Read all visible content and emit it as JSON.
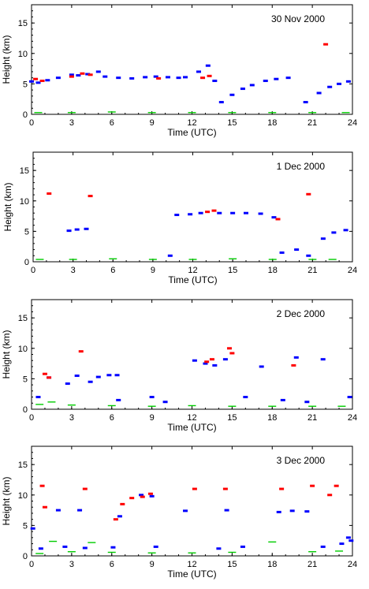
{
  "chart_data": [
    {
      "type": "scatter",
      "title": "30 Nov 2000",
      "xlabel": "Time (UTC)",
      "ylabel": "Height (km)",
      "xlim": [
        0,
        24
      ],
      "ylim": [
        0,
        18
      ],
      "x_ticks": [
        "0",
        "3",
        "6",
        "9",
        "12",
        "15",
        "18",
        "21",
        "24"
      ],
      "y_ticks": [
        "0",
        "5",
        "10",
        "15"
      ],
      "colors": {
        "blue": "#0000ff",
        "red": "#ff0000",
        "green": "#00cc00"
      },
      "series": [
        {
          "color": "blue",
          "points": [
            [
              0,
              5.4
            ],
            [
              0.5,
              5.2
            ],
            [
              1.2,
              5.6
            ],
            [
              2,
              6.0
            ],
            [
              3,
              6.5
            ],
            [
              3.5,
              6.4
            ],
            [
              4.2,
              6.6
            ],
            [
              5,
              7.0
            ],
            [
              5.5,
              6.2
            ],
            [
              6.5,
              6.0
            ],
            [
              7.5,
              5.9
            ],
            [
              8.5,
              6.1
            ],
            [
              9.3,
              6.2
            ],
            [
              10.2,
              6.1
            ],
            [
              11,
              6.0
            ],
            [
              11.5,
              6.1
            ],
            [
              12.5,
              7.0
            ],
            [
              13.2,
              8.0
            ],
            [
              13.7,
              5.5
            ],
            [
              14.2,
              2.0
            ],
            [
              15,
              3.2
            ],
            [
              15.8,
              4.2
            ],
            [
              16.5,
              4.8
            ],
            [
              17.5,
              5.5
            ],
            [
              18.3,
              5.8
            ],
            [
              19.2,
              6.0
            ],
            [
              20.5,
              2.0
            ],
            [
              21.5,
              3.5
            ],
            [
              22.3,
              4.5
            ],
            [
              23,
              5.0
            ],
            [
              23.7,
              5.4
            ]
          ]
        },
        {
          "color": "red",
          "points": [
            [
              0.3,
              5.8
            ],
            [
              0.8,
              5.5
            ],
            [
              3.0,
              6.2
            ],
            [
              3.8,
              6.7
            ],
            [
              4.4,
              6.5
            ],
            [
              9.5,
              5.9
            ],
            [
              12.8,
              6.0
            ],
            [
              13.3,
              6.3
            ],
            [
              22.0,
              11.5
            ]
          ]
        },
        {
          "color": "green",
          "points": [
            [
              0.5,
              0.3
            ],
            [
              3,
              0.3
            ],
            [
              6,
              0.4
            ],
            [
              9,
              0.3
            ],
            [
              12,
              0.3
            ],
            [
              15,
              0.3
            ],
            [
              18,
              0.3
            ],
            [
              21,
              0.3
            ],
            [
              23.5,
              0.3
            ]
          ]
        }
      ]
    },
    {
      "type": "scatter",
      "title": "1 Dec 2000",
      "xlabel": "Time (UTC)",
      "ylabel": "Height (km)",
      "xlim": [
        0,
        24
      ],
      "ylim": [
        0,
        18
      ],
      "x_ticks": [
        "0",
        "3",
        "6",
        "9",
        "12",
        "15",
        "18",
        "21",
        "24"
      ],
      "y_ticks": [
        "0",
        "5",
        "10",
        "15"
      ],
      "colors": {
        "blue": "#0000ff",
        "red": "#ff0000",
        "green": "#00cc00"
      },
      "series": [
        {
          "color": "blue",
          "points": [
            [
              2.7,
              5.1
            ],
            [
              3.3,
              5.3
            ],
            [
              4.0,
              5.4
            ],
            [
              10.3,
              1.0
            ],
            [
              10.8,
              7.7
            ],
            [
              11.8,
              7.8
            ],
            [
              12.6,
              8.0
            ],
            [
              14,
              8.0
            ],
            [
              15,
              8.0
            ],
            [
              16,
              8.0
            ],
            [
              17.1,
              7.9
            ],
            [
              18.1,
              7.3
            ],
            [
              18.7,
              1.5
            ],
            [
              19.8,
              2.0
            ],
            [
              20.7,
              1.0
            ],
            [
              21.8,
              3.8
            ],
            [
              22.6,
              4.8
            ],
            [
              23.5,
              5.2
            ]
          ]
        },
        {
          "color": "red",
          "points": [
            [
              1.2,
              11.2
            ],
            [
              4.3,
              10.8
            ],
            [
              13.1,
              8.2
            ],
            [
              13.6,
              8.4
            ],
            [
              18.4,
              7.0
            ],
            [
              20.7,
              11.1
            ]
          ]
        },
        {
          "color": "green",
          "points": [
            [
              0.5,
              0.4
            ],
            [
              3,
              0.4
            ],
            [
              6,
              0.5
            ],
            [
              9,
              0.4
            ],
            [
              12,
              0.4
            ],
            [
              15,
              0.5
            ],
            [
              18,
              0.4
            ],
            [
              21,
              0.4
            ],
            [
              22.5,
              0.4
            ]
          ]
        }
      ]
    },
    {
      "type": "scatter",
      "title": "2 Dec 2000",
      "xlabel": "Time (UTC)",
      "ylabel": "Height (km)",
      "xlim": [
        0,
        24
      ],
      "ylim": [
        0,
        18
      ],
      "x_ticks": [
        "0",
        "3",
        "6",
        "9",
        "12",
        "15",
        "18",
        "21",
        "24"
      ],
      "y_ticks": [
        "0",
        "5",
        "10",
        "15"
      ],
      "colors": {
        "blue": "#0000ff",
        "red": "#ff0000",
        "green": "#00cc00"
      },
      "series": [
        {
          "color": "blue",
          "points": [
            [
              0.5,
              2.0
            ],
            [
              1.3,
              5.2
            ],
            [
              2.7,
              4.2
            ],
            [
              3.4,
              5.5
            ],
            [
              4.4,
              4.5
            ],
            [
              5.0,
              5.3
            ],
            [
              5.8,
              5.6
            ],
            [
              6.4,
              5.6
            ],
            [
              6.5,
              1.5
            ],
            [
              9.0,
              2.0
            ],
            [
              10.0,
              1.2
            ],
            [
              12.2,
              8.0
            ],
            [
              13.0,
              7.5
            ],
            [
              13.7,
              7.2
            ],
            [
              14.5,
              8.2
            ],
            [
              16.0,
              2.0
            ],
            [
              17.2,
              7.0
            ],
            [
              18.8,
              1.5
            ],
            [
              19.8,
              8.5
            ],
            [
              20.6,
              1.2
            ],
            [
              21.8,
              8.2
            ],
            [
              23.8,
              2.0
            ]
          ]
        },
        {
          "color": "red",
          "points": [
            [
              1.0,
              5.8
            ],
            [
              1.3,
              5.2
            ],
            [
              3.7,
              9.5
            ],
            [
              13.1,
              7.8
            ],
            [
              13.5,
              8.2
            ],
            [
              14.8,
              10.0
            ],
            [
              15.0,
              9.2
            ],
            [
              19.6,
              7.2
            ]
          ]
        },
        {
          "color": "green",
          "points": [
            [
              0.6,
              0.8
            ],
            [
              1.5,
              1.2
            ],
            [
              3,
              0.7
            ],
            [
              6,
              0.6
            ],
            [
              9,
              0.5
            ],
            [
              12,
              0.6
            ],
            [
              15,
              0.5
            ],
            [
              18,
              0.5
            ],
            [
              21,
              0.5
            ],
            [
              23.2,
              0.5
            ]
          ]
        }
      ]
    },
    {
      "type": "scatter",
      "title": "3 Dec 2000",
      "xlabel": "Time (UTC)",
      "ylabel": "Height (km)",
      "xlim": [
        0,
        24
      ],
      "ylim": [
        0,
        18
      ],
      "x_ticks": [
        "0",
        "3",
        "6",
        "9",
        "12",
        "15",
        "18",
        "21",
        "24"
      ],
      "y_ticks": [
        "0",
        "5",
        "10",
        "15"
      ],
      "colors": {
        "blue": "#0000ff",
        "red": "#ff0000",
        "green": "#00cc00"
      },
      "series": [
        {
          "color": "blue",
          "points": [
            [
              0.1,
              4.5
            ],
            [
              0.7,
              1.2
            ],
            [
              2.0,
              7.5
            ],
            [
              2.5,
              1.5
            ],
            [
              3.6,
              7.5
            ],
            [
              4.0,
              1.3
            ],
            [
              6.1,
              1.4
            ],
            [
              6.6,
              6.5
            ],
            [
              8.2,
              10.0
            ],
            [
              9.0,
              9.8
            ],
            [
              9.3,
              1.5
            ],
            [
              11.5,
              7.4
            ],
            [
              14.0,
              1.2
            ],
            [
              14.6,
              7.5
            ],
            [
              15.8,
              1.5
            ],
            [
              18.5,
              7.2
            ],
            [
              19.5,
              7.4
            ],
            [
              20.6,
              7.3
            ],
            [
              21.8,
              1.5
            ],
            [
              23.2,
              2.0
            ],
            [
              23.7,
              3.0
            ],
            [
              23.9,
              2.5
            ]
          ]
        },
        {
          "color": "red",
          "points": [
            [
              0.8,
              11.5
            ],
            [
              1.0,
              8.0
            ],
            [
              4.0,
              11.0
            ],
            [
              6.3,
              6.0
            ],
            [
              6.8,
              8.5
            ],
            [
              7.5,
              9.5
            ],
            [
              8.3,
              9.7
            ],
            [
              8.9,
              10.2
            ],
            [
              12.2,
              11.0
            ],
            [
              14.5,
              11.0
            ],
            [
              18.7,
              11.0
            ],
            [
              21.0,
              11.5
            ],
            [
              22.3,
              10.0
            ],
            [
              22.8,
              11.5
            ]
          ]
        },
        {
          "color": "green",
          "points": [
            [
              0.6,
              0.4
            ],
            [
              1.6,
              2.4
            ],
            [
              3,
              0.7
            ],
            [
              4.5,
              2.2
            ],
            [
              6,
              0.6
            ],
            [
              9,
              0.5
            ],
            [
              12,
              0.5
            ],
            [
              15,
              0.6
            ],
            [
              18,
              2.3
            ],
            [
              21,
              0.7
            ],
            [
              23,
              0.8
            ]
          ]
        }
      ]
    }
  ]
}
